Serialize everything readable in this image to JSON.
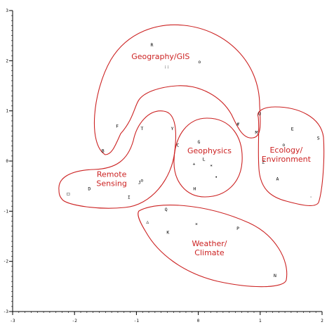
{
  "chart_data": {
    "type": "scatter",
    "title": "",
    "xlabel": "",
    "ylabel": "",
    "xlim": [
      -3,
      2
    ],
    "ylim": [
      -3,
      3
    ],
    "x_ticks": [
      "-3",
      "-2",
      "-1",
      "0",
      "1",
      "2"
    ],
    "y_ticks": [
      "3",
      "2",
      "1",
      "0",
      "-1",
      "-2",
      "-3"
    ],
    "colors": {
      "outline": "#cc2222",
      "labels": "#cc2222",
      "axes": "#000000"
    },
    "points": [
      {
        "label": "R",
        "x": -0.75,
        "y": 2.32
      },
      {
        "label": "o",
        "x": 0.02,
        "y": 1.98
      },
      {
        "label": "::",
        "x": -0.51,
        "y": 1.88
      },
      {
        "label": "F",
        "x": -1.31,
        "y": 0.7
      },
      {
        "label": "T",
        "x": -0.91,
        "y": 0.65
      },
      {
        "label": "Y",
        "x": -0.42,
        "y": 0.65
      },
      {
        "label": "B",
        "x": -1.54,
        "y": 0.21
      },
      {
        "label": "G",
        "x": 0.01,
        "y": 0.38
      },
      {
        "label": "C",
        "x": -0.33,
        "y": 0.32
      },
      {
        "label": "L",
        "x": 0.09,
        "y": 0.04
      },
      {
        "label": "+",
        "x": -0.07,
        "y": -0.06
      },
      {
        "label": "*",
        "x": 0.21,
        "y": -0.1
      },
      {
        "label": "•",
        "x": 0.29,
        "y": -0.32
      },
      {
        "label": "H",
        "x": -0.06,
        "y": -0.55
      },
      {
        "label": "#",
        "x": 0.64,
        "y": 0.74
      },
      {
        "label": "M",
        "x": 0.94,
        "y": 0.57
      },
      {
        "label": "U",
        "x": 0.99,
        "y": 0.94
      },
      {
        "label": "E",
        "x": 1.52,
        "y": 0.64
      },
      {
        "label": "S",
        "x": 1.94,
        "y": 0.46
      },
      {
        "label": "o",
        "x": 1.38,
        "y": 0.33
      },
      {
        "label": "Z",
        "x": 1.05,
        "y": -0.02
      },
      {
        "label": "A",
        "x": 1.28,
        "y": -0.35
      },
      {
        "label": ".",
        "x": 1.82,
        "y": -0.69
      },
      {
        "label": "□",
        "x": -2.1,
        "y": -0.65
      },
      {
        "label": "D",
        "x": -1.76,
        "y": -0.55
      },
      {
        "label": "J",
        "x": -0.95,
        "y": -0.42
      },
      {
        "label": "o",
        "x": -0.91,
        "y": -0.38
      },
      {
        "label": "I",
        "x": -1.12,
        "y": -0.72
      },
      {
        "label": "Q",
        "x": -0.52,
        "y": -0.96
      },
      {
        "label": "△",
        "x": -0.82,
        "y": -1.21
      },
      {
        "label": "×",
        "x": -0.03,
        "y": -1.25
      },
      {
        "label": "K",
        "x": -0.49,
        "y": -1.42
      },
      {
        "label": "P",
        "x": 0.64,
        "y": -1.34
      },
      {
        "label": "N",
        "x": 1.24,
        "y": -2.28
      }
    ],
    "regions": [
      {
        "label": "Geography/GIS",
        "label_x": -0.61,
        "label_y": 2.09
      },
      {
        "label": "Geophysics",
        "label_x": 0.18,
        "label_y": 0.21
      },
      {
        "label": "Ecology/\nEnvironment",
        "label_x": 1.42,
        "label_y": 0.13
      },
      {
        "label": "Remote\nSensing",
        "label_x": -1.4,
        "label_y": -0.35
      },
      {
        "label": "Weather/\nClimate",
        "label_x": 0.18,
        "label_y": -1.73
      }
    ]
  }
}
